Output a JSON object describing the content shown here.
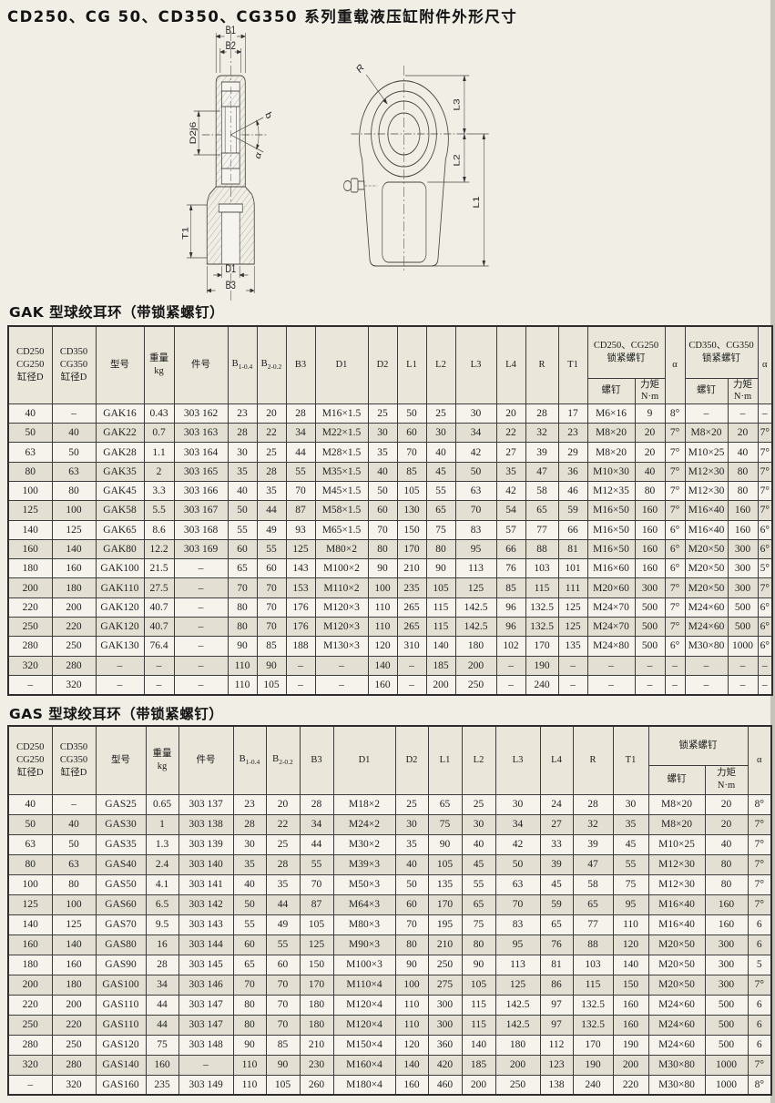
{
  "page": {
    "title": "CD250、CG 50、CD350、CG350 系列重载液压缸附件外形尺寸"
  },
  "colors": {
    "paper": "#f1eee6",
    "row_shade": "#e3e0d3",
    "header_shade": "#eae7da",
    "line": "#3c3c3c"
  },
  "drawings": {
    "left": {
      "b1": "B1",
      "b2": "B2",
      "d2": "D2j6",
      "angle_top": "b",
      "angle_bottom": "α",
      "t1": "T1",
      "d1": "D1",
      "b3": "B3"
    },
    "right": {
      "r": "R",
      "l3": "L3",
      "l2": "L2",
      "l1": "L1"
    }
  },
  "gak": {
    "section_title": "GAK 型球绞耳环（带锁紧螺钉）",
    "header": {
      "col_d250": "CD250\nCG250\n缸径D",
      "col_d350": "CD350\nCG350\n缸径D",
      "col_model": "型号",
      "col_weight": "重量\nkg",
      "col_part": "件号",
      "col_b1": "B",
      "col_b1_sub": "1-0.4",
      "col_b2": "B",
      "col_b2_sub": "2-0.2",
      "col_b3": "B3",
      "col_d1": "D1",
      "col_d2": "D2",
      "col_l1": "L1",
      "col_l2": "L2",
      "col_l3": "L3",
      "col_l4": "L4",
      "col_r": "R",
      "col_t1": "T1",
      "grp1": "CD250、CG250\n锁紧螺钉",
      "grp2": "CD350、CG350\n锁紧螺钉",
      "col_screw": "螺钉",
      "col_torque": "力矩\nN·m",
      "col_alpha": "α"
    },
    "rows": [
      [
        "40",
        "–",
        "GAK16",
        "0.43",
        "303 162",
        "23",
        "20",
        "28",
        "M16×1.5",
        "25",
        "50",
        "25",
        "30",
        "20",
        "28",
        "17",
        "M6×16",
        "9",
        "8°",
        "–",
        "–",
        "–"
      ],
      [
        "50",
        "40",
        "GAK22",
        "0.7",
        "303 163",
        "28",
        "22",
        "34",
        "M22×1.5",
        "30",
        "60",
        "30",
        "34",
        "22",
        "32",
        "23",
        "M8×20",
        "20",
        "7°",
        "M8×20",
        "20",
        "7°"
      ],
      [
        "63",
        "50",
        "GAK28",
        "1.1",
        "303 164",
        "30",
        "25",
        "44",
        "M28×1.5",
        "35",
        "70",
        "40",
        "42",
        "27",
        "39",
        "29",
        "M8×20",
        "20",
        "7°",
        "M10×25",
        "40",
        "7°"
      ],
      [
        "80",
        "63",
        "GAK35",
        "2",
        "303 165",
        "35",
        "28",
        "55",
        "M35×1.5",
        "40",
        "85",
        "45",
        "50",
        "35",
        "47",
        "36",
        "M10×30",
        "40",
        "7°",
        "M12×30",
        "80",
        "7°"
      ],
      [
        "100",
        "80",
        "GAK45",
        "3.3",
        "303 166",
        "40",
        "35",
        "70",
        "M45×1.5",
        "50",
        "105",
        "55",
        "63",
        "42",
        "58",
        "46",
        "M12×35",
        "80",
        "7°",
        "M12×30",
        "80",
        "7°"
      ],
      [
        "125",
        "100",
        "GAK58",
        "5.5",
        "303 167",
        "50",
        "44",
        "87",
        "M58×1.5",
        "60",
        "130",
        "65",
        "70",
        "54",
        "65",
        "59",
        "M16×50",
        "160",
        "7°",
        "M16×40",
        "160",
        "7°"
      ],
      [
        "140",
        "125",
        "GAK65",
        "8.6",
        "303 168",
        "55",
        "49",
        "93",
        "M65×1.5",
        "70",
        "150",
        "75",
        "83",
        "57",
        "77",
        "66",
        "M16×50",
        "160",
        "6°",
        "M16×40",
        "160",
        "6°"
      ],
      [
        "160",
        "140",
        "GAK80",
        "12.2",
        "303 169",
        "60",
        "55",
        "125",
        "M80×2",
        "80",
        "170",
        "80",
        "95",
        "66",
        "88",
        "81",
        "M16×50",
        "160",
        "6°",
        "M20×50",
        "300",
        "6°"
      ],
      [
        "180",
        "160",
        "GAK100",
        "21.5",
        "–",
        "65",
        "60",
        "143",
        "M100×2",
        "90",
        "210",
        "90",
        "113",
        "76",
        "103",
        "101",
        "M16×60",
        "160",
        "6°",
        "M20×50",
        "300",
        "5°"
      ],
      [
        "200",
        "180",
        "GAK110",
        "27.5",
        "–",
        "70",
        "70",
        "153",
        "M110×2",
        "100",
        "235",
        "105",
        "125",
        "85",
        "115",
        "111",
        "M20×60",
        "300",
        "7°",
        "M20×50",
        "300",
        "7°"
      ],
      [
        "220",
        "200",
        "GAK120",
        "40.7",
        "–",
        "80",
        "70",
        "176",
        "M120×3",
        "110",
        "265",
        "115",
        "142.5",
        "96",
        "132.5",
        "125",
        "M24×70",
        "500",
        "7°",
        "M24×60",
        "500",
        "6°"
      ],
      [
        "250",
        "220",
        "GAK120",
        "40.7",
        "–",
        "80",
        "70",
        "176",
        "M120×3",
        "110",
        "265",
        "115",
        "142.5",
        "96",
        "132.5",
        "125",
        "M24×70",
        "500",
        "7°",
        "M24×60",
        "500",
        "6°"
      ],
      [
        "280",
        "250",
        "GAK130",
        "76.4",
        "–",
        "90",
        "85",
        "188",
        "M130×3",
        "120",
        "310",
        "140",
        "180",
        "102",
        "170",
        "135",
        "M24×80",
        "500",
        "6°",
        "M30×80",
        "1000",
        "6°"
      ],
      [
        "320",
        "280",
        "–",
        "–",
        "–",
        "110",
        "90",
        "–",
        "–",
        "140",
        "–",
        "185",
        "200",
        "–",
        "190",
        "–",
        "–",
        "–",
        "–",
        "–",
        "–",
        "–"
      ],
      [
        "–",
        "320",
        "–",
        "–",
        "–",
        "110",
        "105",
        "–",
        "–",
        "160",
        "–",
        "200",
        "250",
        "–",
        "240",
        "–",
        "–",
        "–",
        "–",
        "–",
        "–",
        "–"
      ]
    ]
  },
  "gas": {
    "section_title": "GAS 型球绞耳环（带锁紧螺钉）",
    "header": {
      "col_d250": "CD250\nCG250\n缸径D",
      "col_d350": "CD350\nCG350\n缸径D",
      "col_model": "型号",
      "col_weight": "重量\nkg",
      "col_part": "件号",
      "col_b1": "B",
      "col_b1_sub": "1-0.4",
      "col_b2": "B",
      "col_b2_sub": "2-0.2",
      "col_b3": "B3",
      "col_d1": "D1",
      "col_d2": "D2",
      "col_l1": "L1",
      "col_l2": "L2",
      "col_l3": "L3",
      "col_l4": "L4",
      "col_r": "R",
      "col_t1": "T1",
      "grp": "锁紧螺钉",
      "col_screw": "螺钉",
      "col_torque": "力矩\nN·m",
      "col_alpha": "α"
    },
    "rows": [
      [
        "40",
        "–",
        "GAS25",
        "0.65",
        "303 137",
        "23",
        "20",
        "28",
        "M18×2",
        "25",
        "65",
        "25",
        "30",
        "24",
        "28",
        "30",
        "M8×20",
        "20",
        "8°"
      ],
      [
        "50",
        "40",
        "GAS30",
        "1",
        "303 138",
        "28",
        "22",
        "34",
        "M24×2",
        "30",
        "75",
        "30",
        "34",
        "27",
        "32",
        "35",
        "M8×20",
        "20",
        "7°"
      ],
      [
        "63",
        "50",
        "GAS35",
        "1.3",
        "303 139",
        "30",
        "25",
        "44",
        "M30×2",
        "35",
        "90",
        "40",
        "42",
        "33",
        "39",
        "45",
        "M10×25",
        "40",
        "7°"
      ],
      [
        "80",
        "63",
        "GAS40",
        "2.4",
        "303 140",
        "35",
        "28",
        "55",
        "M39×3",
        "40",
        "105",
        "45",
        "50",
        "39",
        "47",
        "55",
        "M12×30",
        "80",
        "7°"
      ],
      [
        "100",
        "80",
        "GAS50",
        "4.1",
        "303 141",
        "40",
        "35",
        "70",
        "M50×3",
        "50",
        "135",
        "55",
        "63",
        "45",
        "58",
        "75",
        "M12×30",
        "80",
        "7°"
      ],
      [
        "125",
        "100",
        "GAS60",
        "6.5",
        "303 142",
        "50",
        "44",
        "87",
        "M64×3",
        "60",
        "170",
        "65",
        "70",
        "59",
        "65",
        "95",
        "M16×40",
        "160",
        "7°"
      ],
      [
        "140",
        "125",
        "GAS70",
        "9.5",
        "303 143",
        "55",
        "49",
        "105",
        "M80×3",
        "70",
        "195",
        "75",
        "83",
        "65",
        "77",
        "110",
        "M16×40",
        "160",
        "6"
      ],
      [
        "160",
        "140",
        "GAS80",
        "16",
        "303 144",
        "60",
        "55",
        "125",
        "M90×3",
        "80",
        "210",
        "80",
        "95",
        "76",
        "88",
        "120",
        "M20×50",
        "300",
        "6"
      ],
      [
        "180",
        "160",
        "GAS90",
        "28",
        "303 145",
        "65",
        "60",
        "150",
        "M100×3",
        "90",
        "250",
        "90",
        "113",
        "81",
        "103",
        "140",
        "M20×50",
        "300",
        "5"
      ],
      [
        "200",
        "180",
        "GAS100",
        "34",
        "303 146",
        "70",
        "70",
        "170",
        "M110×4",
        "100",
        "275",
        "105",
        "125",
        "86",
        "115",
        "150",
        "M20×50",
        "300",
        "7°"
      ],
      [
        "220",
        "200",
        "GAS110",
        "44",
        "303 147",
        "80",
        "70",
        "180",
        "M120×4",
        "110",
        "300",
        "115",
        "142.5",
        "97",
        "132.5",
        "160",
        "M24×60",
        "500",
        "6"
      ],
      [
        "250",
        "220",
        "GAS110",
        "44",
        "303 147",
        "80",
        "70",
        "180",
        "M120×4",
        "110",
        "300",
        "115",
        "142.5",
        "97",
        "132.5",
        "160",
        "M24×60",
        "500",
        "6"
      ],
      [
        "280",
        "250",
        "GAS120",
        "75",
        "303 148",
        "90",
        "85",
        "210",
        "M150×4",
        "120",
        "360",
        "140",
        "180",
        "112",
        "170",
        "190",
        "M24×60",
        "500",
        "6"
      ],
      [
        "320",
        "280",
        "GAS140",
        "160",
        "–",
        "110",
        "90",
        "230",
        "M160×4",
        "140",
        "420",
        "185",
        "200",
        "123",
        "190",
        "200",
        "M30×80",
        "1000",
        "7°"
      ],
      [
        "–",
        "320",
        "GAS160",
        "235",
        "303 149",
        "110",
        "105",
        "260",
        "M180×4",
        "160",
        "460",
        "200",
        "250",
        "138",
        "240",
        "220",
        "M30×80",
        "1000",
        "8°"
      ]
    ]
  }
}
